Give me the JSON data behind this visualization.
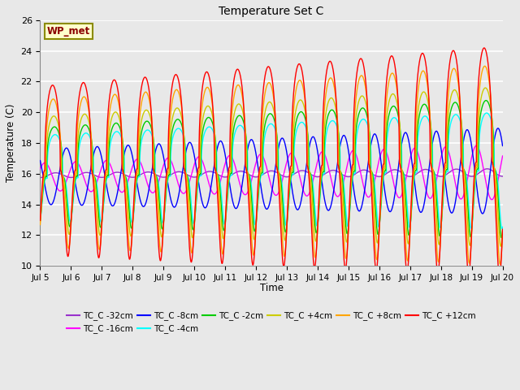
{
  "title": "Temperature Set C",
  "xlabel": "Time",
  "ylabel": "Temperature (C)",
  "ylim": [
    10,
    26
  ],
  "yticks": [
    10,
    12,
    14,
    16,
    18,
    20,
    22,
    24,
    26
  ],
  "xtick_labels": [
    "Jul 5",
    "Jul 6",
    "Jul 7",
    "Jul 8",
    "Jul 9",
    "Jul 10",
    "Jul 11",
    "Jul 12",
    "Jul 13",
    "Jul 14",
    "Jul 15",
    "Jul 16",
    "Jul 17",
    "Jul 18",
    "Jul 19",
    "Jul 20"
  ],
  "annotation_text": "WP_met",
  "annotation_color": "#8B0000",
  "annotation_bg": "#FFFFCC",
  "annotation_border": "#8B8B00",
  "series_colors": {
    "TC_C -32cm": "#9932CC",
    "TC_C -16cm": "#FF00FF",
    "TC_C -8cm": "#0000FF",
    "TC_C -4cm": "#00FFFF",
    "TC_C -2cm": "#00CC00",
    "TC_C +4cm": "#CCCC00",
    "TC_C +8cm": "#FFA500",
    "TC_C +12cm": "#FF0000"
  },
  "bg_color": "#E8E8E8",
  "grid_color": "#FFFFFF",
  "legend_order": [
    "TC_C -32cm",
    "TC_C -16cm",
    "TC_C -8cm",
    "TC_C -4cm",
    "TC_C -2cm",
    "TC_C +4cm",
    "TC_C +8cm",
    "TC_C +12cm"
  ]
}
